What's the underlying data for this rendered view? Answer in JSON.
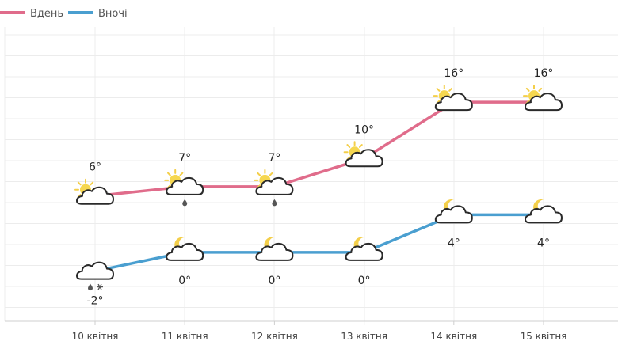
{
  "chart_data": {
    "type": "line",
    "categories": [
      "10 квітня",
      "11 квітня",
      "12 квітня",
      "13 квітня",
      "14 квітня",
      "15 квітня"
    ],
    "series": [
      {
        "name": "Вдень",
        "color": "#e06c8b",
        "values": [
          6,
          7,
          7,
          10,
          16,
          16
        ],
        "labels": [
          "6°",
          "7°",
          "7°",
          "10°",
          "16°",
          "16°"
        ],
        "icons": [
          "sun-cloud-icon",
          "sun-cloud-rain-icon",
          "sun-cloud-rain-icon",
          "sun-cloud-icon",
          "sun-cloud-icon",
          "sun-cloud-icon"
        ]
      },
      {
        "name": "Вночі",
        "color": "#4a9fd0",
        "values": [
          -2,
          0,
          0,
          0,
          4,
          4
        ],
        "labels": [
          "-2°",
          "0°",
          "0°",
          "0°",
          "4°",
          "4°"
        ],
        "icons": [
          "cloud-rain-snow-icon",
          "moon-cloud-icon",
          "moon-cloud-icon",
          "moon-cloud-icon",
          "moon-cloud-icon",
          "moon-cloud-icon"
        ]
      }
    ],
    "ylim": [
      -6,
      22
    ],
    "grid": true,
    "legend": "top-left"
  }
}
